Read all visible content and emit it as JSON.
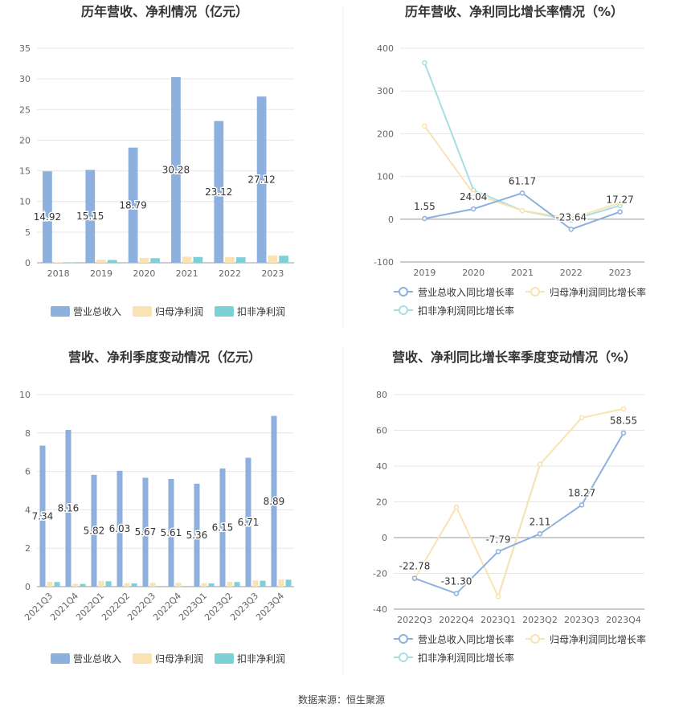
{
  "footer": {
    "source": "数据来源：恒生聚源"
  },
  "legend_labels": {
    "revenue": "营业总收入",
    "net_profit": "归母净利润",
    "deducted_profit": "扣非净利润",
    "revenue_yoy": "营业总收入同比增长率",
    "net_profit_yoy": "归母净利润同比增长率",
    "deducted_profit_yoy": "扣非净利润同比增长率"
  },
  "chart_data": [
    {
      "type": "bar",
      "title": "历年营收、净利情况（亿元）",
      "categories": [
        "2018",
        "2019",
        "2020",
        "2021",
        "2022",
        "2023"
      ],
      "ylim": [
        0,
        35
      ],
      "yticks": [
        0,
        5,
        10,
        15,
        20,
        25,
        30,
        35
      ],
      "grid": true,
      "legend": "bottom",
      "series": [
        {
          "name": "营业总收入",
          "color": "#8eb0de",
          "values": [
            14.92,
            15.15,
            18.79,
            30.28,
            23.12,
            27.12
          ],
          "labels": [
            "14.92",
            "15.15",
            "18.79",
            "30.28",
            "23.12",
            "27.12"
          ]
        },
        {
          "name": "归母净利润",
          "color": "#fbe2b3",
          "values": [
            0.1,
            0.5,
            0.8,
            1.0,
            0.95,
            1.2
          ]
        },
        {
          "name": "扣非净利润",
          "color": "#7dd1d6",
          "values": [
            0.05,
            0.45,
            0.75,
            0.95,
            0.9,
            1.15
          ]
        }
      ]
    },
    {
      "type": "line",
      "title": "历年营收、净利同比增长率情况（%）",
      "categories": [
        "2019",
        "2020",
        "2021",
        "2022",
        "2023"
      ],
      "ylim": [
        -100,
        400
      ],
      "yticks": [
        -100,
        0,
        100,
        200,
        300,
        400
      ],
      "grid": true,
      "legend": "bottom",
      "series": [
        {
          "name": "营业总收入同比增长率",
          "color": "#8eb0de",
          "values": [
            1.55,
            24.04,
            61.17,
            -23.64,
            17.27
          ],
          "labels": [
            "1.55",
            "24.04",
            "61.17",
            "-23.64",
            "17.27"
          ]
        },
        {
          "name": "归母净利润同比增长率",
          "color": "#fbe2b3",
          "values": [
            218,
            60,
            20,
            2,
            38
          ]
        },
        {
          "name": "扣非净利润同比增长率",
          "color": "#a6dfe3",
          "values": [
            366,
            68,
            20,
            -2,
            32
          ]
        }
      ]
    },
    {
      "type": "bar",
      "title": "营收、净利季度变动情况（亿元）",
      "categories": [
        "2021Q3",
        "2021Q4",
        "2022Q1",
        "2022Q2",
        "2022Q3",
        "2022Q4",
        "2023Q1",
        "2023Q2",
        "2023Q3",
        "2023Q4"
      ],
      "ylim": [
        0,
        10
      ],
      "yticks": [
        0,
        2,
        4,
        6,
        8,
        10
      ],
      "grid": true,
      "legend": "bottom",
      "series": [
        {
          "name": "营业总收入",
          "color": "#8eb0de",
          "values": [
            7.34,
            8.16,
            5.82,
            6.03,
            5.67,
            5.61,
            5.36,
            6.15,
            6.71,
            8.89
          ],
          "labels": [
            "7.34",
            "8.16",
            "5.82",
            "6.03",
            "5.67",
            "5.61",
            "5.36",
            "6.15",
            "6.71",
            "8.89"
          ]
        },
        {
          "name": "归母净利润",
          "color": "#fbe2b3",
          "values": [
            0.25,
            0.15,
            0.3,
            0.18,
            0.2,
            0.2,
            0.18,
            0.25,
            0.32,
            0.37
          ]
        },
        {
          "name": "扣非净利润",
          "color": "#7dd1d6",
          "values": [
            0.24,
            0.14,
            0.28,
            0.17,
            0.0,
            0.0,
            0.17,
            0.24,
            0.31,
            0.36
          ]
        }
      ]
    },
    {
      "type": "line",
      "title": "营收、净利同比增长率季度变动情况（%）",
      "categories": [
        "2022Q3",
        "2022Q4",
        "2023Q1",
        "2023Q2",
        "2023Q3",
        "2023Q4"
      ],
      "ylim": [
        -40,
        80
      ],
      "yticks": [
        -40,
        -20,
        0,
        20,
        40,
        60,
        80
      ],
      "grid": true,
      "legend": "bottom",
      "series": [
        {
          "name": "营业总收入同比增长率",
          "color": "#8eb0de",
          "values": [
            -22.78,
            -31.3,
            -7.79,
            2.11,
            18.27,
            58.55
          ],
          "labels": [
            "-22.78",
            "-31.30",
            "-7.79",
            "2.11",
            "18.27",
            "58.55"
          ]
        },
        {
          "name": "归母净利润同比增长率",
          "color": "#fbe2b3",
          "values": [
            -23,
            17,
            -33,
            41,
            67,
            72
          ]
        },
        {
          "name": "扣非净利润同比增长率",
          "color": "#a6dfe3",
          "values": [
            null,
            null,
            -33,
            41,
            null,
            null
          ]
        }
      ]
    }
  ]
}
